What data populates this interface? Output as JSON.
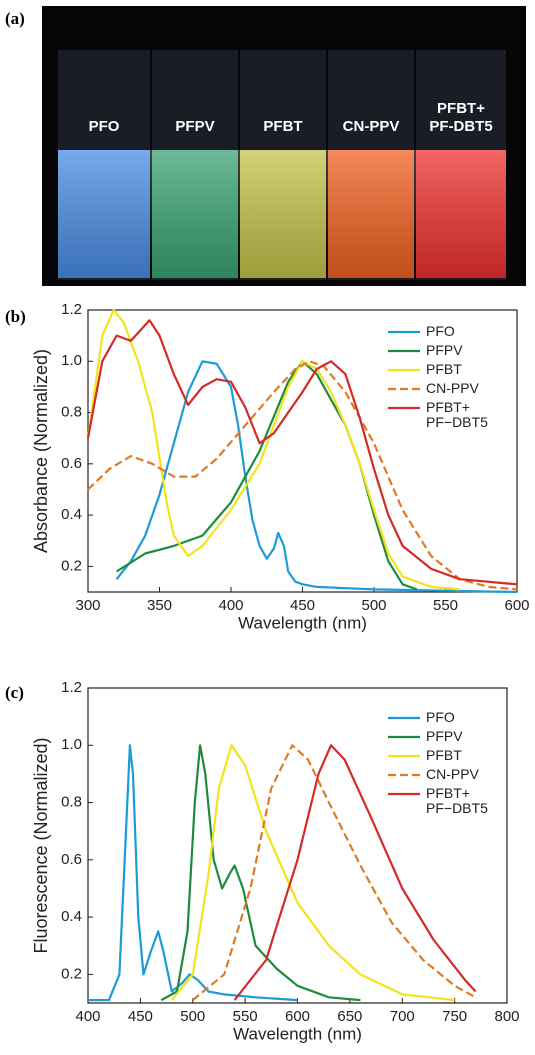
{
  "photo": {
    "panel_label": "(a)",
    "labels": [
      "PFO",
      "PFPV",
      "PFBT",
      "CN-PPV",
      "PFBT+\nPF-DBT5"
    ]
  },
  "chart_data": [
    {
      "type": "line",
      "panel_label": "(b)",
      "x_label": "Wavelength (nm)",
      "y_label": "Absorbance (Normalized)",
      "xlim": [
        300,
        600
      ],
      "xticks": [
        300,
        350,
        400,
        450,
        500,
        550,
        600
      ],
      "ylim": [
        0.1,
        1.2
      ],
      "yticks": [
        0.2,
        0.4,
        0.6,
        0.8,
        {
          "value": 1,
          "label": "1.0"
        },
        1.2
      ],
      "series": [
        {
          "name": "PFO",
          "color": "#1e9ad8",
          "x": [
            320,
            330,
            340,
            350,
            360,
            370,
            380,
            390,
            400,
            405,
            410,
            415,
            420,
            425,
            430,
            433,
            437,
            440,
            445,
            450,
            460,
            480,
            500,
            550,
            600
          ],
          "values": [
            0.15,
            0.22,
            0.32,
            0.48,
            0.68,
            0.88,
            1.0,
            0.99,
            0.9,
            0.75,
            0.55,
            0.38,
            0.28,
            0.23,
            0.27,
            0.33,
            0.28,
            0.18,
            0.14,
            0.13,
            0.12,
            0.115,
            0.11,
            0.105,
            0.1
          ]
        },
        {
          "name": "PFPV",
          "color": "#1c8c3c",
          "x": [
            320,
            340,
            360,
            380,
            400,
            420,
            440,
            450,
            460,
            470,
            480,
            490,
            500,
            510,
            520,
            530
          ],
          "values": [
            0.18,
            0.25,
            0.28,
            0.32,
            0.45,
            0.65,
            0.92,
            1.0,
            0.95,
            0.85,
            0.75,
            0.6,
            0.4,
            0.22,
            0.13,
            0.11
          ]
        },
        {
          "name": "PFBT",
          "color": "#f2e31c",
          "x": [
            300,
            310,
            318,
            325,
            335,
            345,
            355,
            360,
            370,
            380,
            400,
            420,
            440,
            450,
            460,
            470,
            480,
            490,
            500,
            510,
            520,
            540,
            560
          ],
          "values": [
            0.7,
            1.1,
            1.2,
            1.15,
            1.0,
            0.8,
            0.45,
            0.32,
            0.24,
            0.28,
            0.42,
            0.6,
            0.9,
            1.0,
            0.97,
            0.88,
            0.75,
            0.6,
            0.42,
            0.25,
            0.16,
            0.12,
            0.11
          ]
        },
        {
          "name": "CN-PPV",
          "color": "#e07a22",
          "dash": true,
          "x": [
            300,
            315,
            330,
            345,
            360,
            375,
            390,
            410,
            430,
            445,
            455,
            465,
            480,
            500,
            520,
            540,
            560,
            580,
            600
          ],
          "values": [
            0.5,
            0.58,
            0.63,
            0.6,
            0.55,
            0.55,
            0.62,
            0.75,
            0.88,
            0.97,
            1.0,
            0.98,
            0.88,
            0.68,
            0.42,
            0.24,
            0.15,
            0.12,
            0.11
          ]
        },
        {
          "name": "PFBT+\nPF−DBT5",
          "color": "#d32a2a",
          "x": [
            300,
            310,
            320,
            330,
            343,
            350,
            360,
            370,
            380,
            390,
            400,
            410,
            420,
            430,
            440,
            450,
            460,
            470,
            480,
            490,
            500,
            510,
            520,
            540,
            560,
            600
          ],
          "values": [
            0.7,
            1.0,
            1.1,
            1.08,
            1.16,
            1.1,
            0.95,
            0.83,
            0.9,
            0.93,
            0.92,
            0.82,
            0.68,
            0.72,
            0.8,
            0.88,
            0.97,
            1.0,
            0.95,
            0.78,
            0.58,
            0.4,
            0.28,
            0.19,
            0.15,
            0.13
          ]
        }
      ]
    },
    {
      "type": "line",
      "panel_label": "(c)",
      "x_label": "Wavelength (nm)",
      "y_label": "Fluorescence (Normalized)",
      "xlim": [
        400,
        800
      ],
      "xticks": [
        400,
        450,
        500,
        550,
        600,
        650,
        700,
        750,
        800
      ],
      "ylim": [
        0.1,
        1.2
      ],
      "yticks": [
        0.2,
        0.4,
        0.6,
        0.8,
        {
          "value": 1,
          "label": "1.0"
        },
        1.2
      ],
      "series": [
        {
          "name": "PFO",
          "color": "#1e9ad8",
          "x": [
            400,
            420,
            430,
            435,
            440,
            443,
            448,
            453,
            460,
            467,
            472,
            480,
            490,
            497,
            505,
            515,
            530,
            560,
            600
          ],
          "values": [
            0.11,
            0.11,
            0.2,
            0.6,
            1.0,
            0.9,
            0.4,
            0.2,
            0.28,
            0.35,
            0.28,
            0.14,
            0.17,
            0.2,
            0.18,
            0.14,
            0.13,
            0.12,
            0.11
          ]
        },
        {
          "name": "PFPV",
          "color": "#1c8c3c",
          "x": [
            470,
            485,
            495,
            502,
            507,
            512,
            520,
            528,
            535,
            540,
            548,
            560,
            580,
            600,
            630,
            660
          ],
          "values": [
            0.11,
            0.14,
            0.35,
            0.8,
            1.0,
            0.9,
            0.6,
            0.5,
            0.55,
            0.58,
            0.5,
            0.3,
            0.22,
            0.16,
            0.12,
            0.11
          ]
        },
        {
          "name": "PFBT",
          "color": "#f2e31c",
          "x": [
            480,
            500,
            515,
            525,
            537,
            550,
            570,
            600,
            630,
            660,
            700,
            750
          ],
          "values": [
            0.11,
            0.2,
            0.55,
            0.85,
            1.0,
            0.93,
            0.7,
            0.45,
            0.3,
            0.2,
            0.13,
            0.11
          ]
        },
        {
          "name": "CN-PPV",
          "color": "#e07a22",
          "dash": true,
          "x": [
            500,
            530,
            555,
            575,
            595,
            610,
            630,
            660,
            690,
            720,
            750,
            770
          ],
          "values": [
            0.11,
            0.2,
            0.5,
            0.85,
            1.0,
            0.95,
            0.8,
            0.58,
            0.38,
            0.25,
            0.16,
            0.12
          ]
        },
        {
          "name": "PFBT+\nPF−DBT5",
          "color": "#d32a2a",
          "x": [
            540,
            570,
            600,
            620,
            632,
            645,
            670,
            700,
            730,
            760,
            770
          ],
          "values": [
            0.11,
            0.25,
            0.6,
            0.9,
            1.0,
            0.95,
            0.75,
            0.5,
            0.32,
            0.18,
            0.14
          ]
        }
      ]
    }
  ]
}
